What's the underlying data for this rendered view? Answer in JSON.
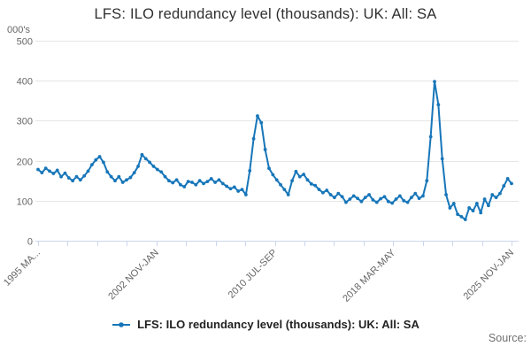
{
  "header": {
    "title": "LFS: ILO redundancy level (thousands): UK: All: SA"
  },
  "y_axis": {
    "unit_label": "000's",
    "ticks": [
      0,
      100,
      200,
      300,
      400,
      500
    ]
  },
  "x_axis": {
    "tick_count": 17,
    "labels": [
      {
        "index": 0,
        "text": "1995 MA..."
      },
      {
        "index": 4,
        "text": "2002 NOV-JAN"
      },
      {
        "index": 8,
        "text": "2010 JUL-SEP"
      },
      {
        "index": 12,
        "text": "2018 MAR-MAY"
      },
      {
        "index": 16,
        "text": "2025 NOV-JAN"
      }
    ]
  },
  "legend": {
    "label": "LFS: ILO redundancy level (thousands): UK: All: SA"
  },
  "footer": {
    "source_label": "Source:"
  },
  "colors": {
    "line": "#1776b9",
    "grid": "#e6e6e6",
    "axis": "#ccd6eb",
    "text_muted": "#666666",
    "title_text": "#2f2f2f"
  },
  "chart_data": {
    "type": "line",
    "title": "LFS: ILO redundancy level (thousands): UK: All: SA",
    "ylabel": "000's",
    "unit": "thousands",
    "frequency": "quarterly",
    "x_start": "1995 MAR-MAY",
    "x_end": "2025 NOV-JAN",
    "ylim": [
      0,
      500
    ],
    "y_ticks": [
      0,
      100,
      200,
      300,
      400,
      500
    ],
    "x_tick_labels": [
      "1995 MA...",
      "2002 NOV-JAN",
      "2010 JUL-SEP",
      "2018 MAR-MAY",
      "2025 NOV-JAN"
    ],
    "grid": "horizontal",
    "legend_position": "bottom",
    "markers": true,
    "series": [
      {
        "name": "LFS: ILO redundancy level (thousands): UK: All: SA",
        "color": "#1776b9",
        "values": [
          178,
          170,
          181,
          174,
          168,
          176,
          160,
          169,
          157,
          150,
          160,
          152,
          162,
          174,
          190,
          202,
          210,
          196,
          172,
          160,
          150,
          160,
          146,
          152,
          158,
          170,
          186,
          215,
          205,
          196,
          186,
          178,
          172,
          160,
          150,
          145,
          152,
          140,
          135,
          148,
          146,
          140,
          150,
          143,
          148,
          155,
          146,
          152,
          143,
          136,
          130,
          134,
          124,
          128,
          115,
          175,
          255,
          312,
          295,
          228,
          181,
          165,
          152,
          140,
          128,
          115,
          150,
          173,
          160,
          166,
          152,
          142,
          138,
          128,
          120,
          126,
          115,
          108,
          118,
          110,
          96,
          104,
          112,
          106,
          98,
          108,
          115,
          102,
          96,
          105,
          110,
          98,
          94,
          104,
          112,
          100,
          96,
          108,
          118,
          106,
          112,
          150,
          260,
          398,
          340,
          205,
          115,
          82,
          93,
          66,
          60,
          53,
          82,
          75,
          93,
          70,
          104,
          88,
          115,
          108,
          118,
          137,
          155,
          143
        ]
      }
    ]
  }
}
